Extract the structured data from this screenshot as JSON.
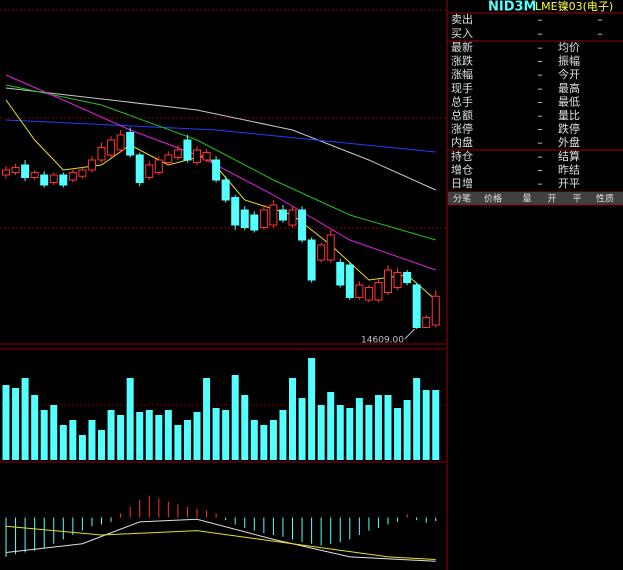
{
  "header": {
    "code": "NID3M",
    "name": "LME镍03(电子)"
  },
  "quote": {
    "bid_ask": [
      [
        "卖出",
        "–",
        "–"
      ],
      [
        "买入",
        "–",
        "–"
      ]
    ],
    "rows": [
      [
        "最新",
        "–",
        "均价"
      ],
      [
        "涨跌",
        "–",
        "振幅"
      ],
      [
        "涨幅",
        "–",
        "今开"
      ],
      [
        "现手",
        "–",
        "最高"
      ],
      [
        "总手",
        "–",
        "最低"
      ],
      [
        "总额",
        "–",
        "量比"
      ],
      [
        "涨停",
        "–",
        "跌停"
      ],
      [
        "内盘",
        "–",
        "外盘"
      ]
    ],
    "rows2": [
      [
        "持仓",
        "–",
        "结算"
      ],
      [
        "增仓",
        "–",
        "昨结"
      ],
      [
        "日增",
        "–",
        "开平"
      ]
    ],
    "table_header": [
      "分笔",
      "价格",
      "量",
      "开",
      "平",
      "性质"
    ]
  },
  "chart_data": [
    {
      "type": "candlestick",
      "up_color": "#ff3232",
      "down_color": "#54ffff",
      "ylim": [
        14500,
        17240
      ],
      "open": [
        15840,
        15860,
        15920,
        15820,
        15840,
        15780,
        15840,
        15800,
        15830,
        15880,
        15960,
        16000,
        16040,
        16180,
        16000,
        15820,
        15860,
        15940,
        15980,
        16120,
        15940,
        15960,
        15960,
        15800,
        15660,
        15560,
        15520,
        15420,
        15440,
        15560,
        15440,
        15560,
        15320,
        15160,
        15160,
        15140,
        15120,
        14860,
        14840,
        14840,
        14900,
        14940,
        15060,
        14960,
        14620,
        14640
      ],
      "high": [
        15910,
        15930,
        15960,
        15880,
        15870,
        15860,
        15860,
        15890,
        15900,
        15990,
        16100,
        16150,
        16200,
        16220,
        16020,
        15950,
        15990,
        16030,
        16080,
        16160,
        16070,
        16050,
        15990,
        15830,
        15680,
        15590,
        15550,
        15600,
        15640,
        15600,
        15590,
        15590,
        15340,
        15300,
        15400,
        15170,
        15140,
        14990,
        14960,
        15010,
        15120,
        15100,
        15080,
        14980,
        14720,
        14920
      ],
      "low": [
        15810,
        15840,
        15790,
        15800,
        15740,
        15760,
        15740,
        15780,
        15810,
        15860,
        15940,
        15980,
        16020,
        15980,
        15750,
        15800,
        15840,
        15920,
        15960,
        15940,
        15920,
        15940,
        15780,
        15620,
        15400,
        15400,
        15380,
        15400,
        15420,
        15460,
        15420,
        15300,
        14980,
        15140,
        15140,
        14940,
        14840,
        14840,
        14820,
        14820,
        14880,
        14920,
        14960,
        14609,
        14630,
        14620
      ],
      "close": [
        15880,
        15900,
        15820,
        15860,
        15760,
        15840,
        15760,
        15860,
        15880,
        15960,
        16060,
        16120,
        16160,
        16000,
        15780,
        15920,
        15960,
        16000,
        16040,
        15960,
        16040,
        16020,
        15800,
        15640,
        15440,
        15420,
        15400,
        15560,
        15600,
        15480,
        15560,
        15320,
        15000,
        15280,
        15360,
        14960,
        14860,
        14960,
        14940,
        14980,
        15080,
        15060,
        14980,
        14620,
        14700,
        14870
      ],
      "lines": [
        {
          "color": "#c8c8c8",
          "x": [
            0,
            20,
            30,
            38,
            45
          ],
          "values": [
            16536,
            16360,
            16200,
            15960,
            15720
          ]
        },
        {
          "color": "#2040ff",
          "x": [
            0,
            22,
            45
          ],
          "values": [
            16280,
            16200,
            16024
          ]
        },
        {
          "color": "#20c020",
          "x": [
            0,
            10,
            20,
            28,
            36,
            45
          ],
          "values": [
            16560,
            16400,
            16120,
            15800,
            15520,
            15320
          ]
        },
        {
          "color": "#e020e0",
          "x": [
            0,
            6,
            13,
            20,
            28,
            36,
            45
          ],
          "values": [
            16640,
            16440,
            16200,
            16000,
            15680,
            15320,
            15080
          ]
        },
        {
          "color": "#e8e020",
          "x": [
            0,
            3,
            6,
            10,
            13,
            17,
            21,
            25,
            30,
            34,
            38,
            42,
            45
          ],
          "values": [
            16440,
            16120,
            15880,
            15920,
            16080,
            15920,
            16000,
            15640,
            15520,
            15280,
            15000,
            15040,
            14840
          ]
        }
      ],
      "annotation": {
        "value": 14609,
        "label": "14609.00"
      }
    },
    {
      "type": "bar",
      "color": "#54ffff",
      "up_color": "#ff3232",
      "ylim": [
        0,
        110
      ],
      "values": [
        75,
        72,
        82,
        65,
        50,
        55,
        35,
        40,
        25,
        40,
        30,
        50,
        45,
        82,
        48,
        50,
        45,
        50,
        35,
        40,
        48,
        82,
        52,
        50,
        85,
        65,
        40,
        35,
        40,
        50,
        82,
        62,
        102,
        55,
        68,
        55,
        52,
        62,
        55,
        65,
        65,
        52,
        60,
        82,
        70,
        70
      ]
    },
    {
      "type": "macd",
      "up_color": "#ff3232",
      "down_color": "#54ffff",
      "ylim": [
        -60,
        60
      ],
      "values": [
        -45,
        -42,
        -40,
        -38,
        -35,
        -30,
        -25,
        -20,
        -15,
        -10,
        -8,
        -5,
        5,
        12,
        20,
        25,
        22,
        18,
        15,
        12,
        10,
        8,
        5,
        -3,
        -8,
        -12,
        -15,
        -18,
        -20,
        -22,
        -25,
        -28,
        -30,
        -32,
        -30,
        -28,
        -25,
        -20,
        -15,
        -12,
        -8,
        -5,
        4,
        -3,
        -6,
        -4
      ],
      "lines": [
        {
          "color": "#e0e0e0",
          "x": [
            0,
            8,
            14,
            20,
            28,
            36,
            45
          ],
          "values": [
            -40,
            -30,
            -5,
            -2,
            -25,
            -45,
            -50
          ]
        },
        {
          "color": "#e8e020",
          "x": [
            0,
            10,
            20,
            30,
            40,
            45
          ],
          "values": [
            -10,
            -20,
            -15,
            -30,
            -45,
            -48
          ]
        }
      ]
    }
  ]
}
